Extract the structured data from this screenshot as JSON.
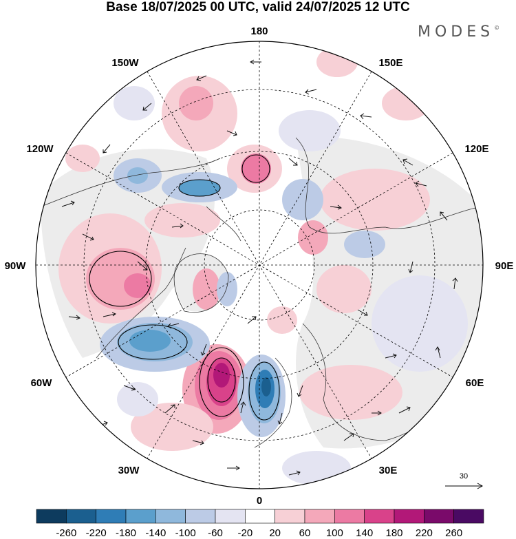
{
  "title": "Base 18/07/2025 00 UTC, valid 24/07/2025 12 UTC",
  "brand": "MODES",
  "brand_mark": "©",
  "map": {
    "projection": "north-polar-stereographic",
    "longitude_labels": {
      "top": "180",
      "top_left": "150W",
      "top_right": "150E",
      "upper_left": "120W",
      "upper_right": "120E",
      "left": "90W",
      "right": "90E",
      "lower_left": "60W",
      "lower_right": "60E",
      "bottom_left": "30W",
      "bottom_right": "30E",
      "bottom": "0"
    },
    "reference_vector_label": "30",
    "colors": {
      "coastline": "#333333",
      "graticule": "#000000",
      "vector": "#111111",
      "land_background": "#ececec"
    }
  },
  "colorbar": {
    "ticks": [
      "-260",
      "-220",
      "-180",
      "-140",
      "-100",
      "-60",
      "-20",
      "20",
      "60",
      "100",
      "140",
      "180",
      "220",
      "260"
    ],
    "colors": [
      "#0d3b5e",
      "#1b5f8f",
      "#2f7db6",
      "#5b9fcc",
      "#8fb8dc",
      "#bccbe6",
      "#e4e4f2",
      "#ffffff",
      "#f7d0d6",
      "#f4a8ba",
      "#ec7aa3",
      "#d9428a",
      "#b21878",
      "#7a0a6a",
      "#4a0a63"
    ]
  }
}
